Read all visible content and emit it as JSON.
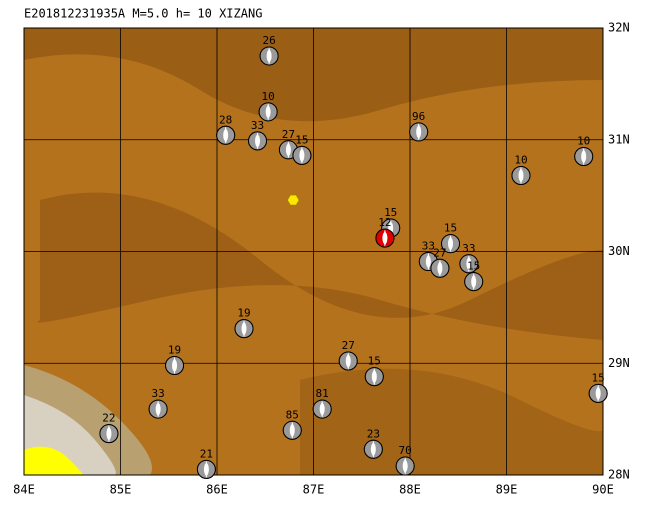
{
  "title": "E201812231935A M=5.0 h= 10 XIZANG",
  "xlim": [
    84,
    90
  ],
  "ylim": [
    28,
    32
  ],
  "xticks": [
    {
      "value": 84,
      "label": "84E"
    },
    {
      "value": 85,
      "label": "85E"
    },
    {
      "value": 86,
      "label": "86E"
    },
    {
      "value": 87,
      "label": "87E"
    },
    {
      "value": 88,
      "label": "88E"
    },
    {
      "value": 89,
      "label": "89E"
    },
    {
      "value": 90,
      "label": "90E"
    }
  ],
  "yticks": [
    {
      "value": 28,
      "label": "28N"
    },
    {
      "value": 29,
      "label": "29N"
    },
    {
      "value": 30,
      "label": "30N"
    },
    {
      "value": 31,
      "label": "31N"
    },
    {
      "value": 32,
      "label": "32N"
    }
  ],
  "marker": {
    "lon": 86.79,
    "lat": 30.46,
    "color": "#ffe600"
  },
  "events": [
    {
      "label": "26",
      "lon": 86.54,
      "lat": 31.75
    },
    {
      "label": "10",
      "lon": 86.53,
      "lat": 31.25
    },
    {
      "label": "28",
      "lon": 86.09,
      "lat": 31.04
    },
    {
      "label": "33",
      "lon": 86.42,
      "lat": 30.99
    },
    {
      "label": "27",
      "lon": 86.74,
      "lat": 30.91
    },
    {
      "label": "15",
      "lon": 86.88,
      "lat": 30.86
    },
    {
      "label": "96",
      "lon": 88.09,
      "lat": 31.07
    },
    {
      "label": "10",
      "lon": 89.8,
      "lat": 30.85
    },
    {
      "label": "10",
      "lon": 89.15,
      "lat": 30.68
    },
    {
      "label": "15",
      "lon": 87.8,
      "lat": 30.21
    },
    {
      "label": "12",
      "lon": 87.74,
      "lat": 30.12,
      "color": "#e00000"
    },
    {
      "label": "15",
      "lon": 88.42,
      "lat": 30.07
    },
    {
      "label": "33",
      "lon": 88.19,
      "lat": 29.91
    },
    {
      "label": "33",
      "lon": 88.61,
      "lat": 29.89
    },
    {
      "label": "27",
      "lon": 88.31,
      "lat": 29.85
    },
    {
      "label": "15",
      "lon": 88.66,
      "lat": 29.73
    },
    {
      "label": "19",
      "lon": 86.28,
      "lat": 29.31
    },
    {
      "label": "27",
      "lon": 87.36,
      "lat": 29.02
    },
    {
      "label": "15",
      "lon": 87.63,
      "lat": 28.88
    },
    {
      "label": "19",
      "lon": 85.56,
      "lat": 28.98
    },
    {
      "label": "33",
      "lon": 85.39,
      "lat": 28.59
    },
    {
      "label": "22",
      "lon": 84.88,
      "lat": 28.37
    },
    {
      "label": "81",
      "lon": 87.09,
      "lat": 28.59
    },
    {
      "label": "85",
      "lon": 86.78,
      "lat": 28.4
    },
    {
      "label": "23",
      "lon": 87.62,
      "lat": 28.23
    },
    {
      "label": "21",
      "lon": 85.89,
      "lat": 28.05
    },
    {
      "label": "70",
      "lon": 87.95,
      "lat": 28.08
    },
    {
      "label": "15",
      "lon": 89.95,
      "lat": 28.73
    }
  ]
}
